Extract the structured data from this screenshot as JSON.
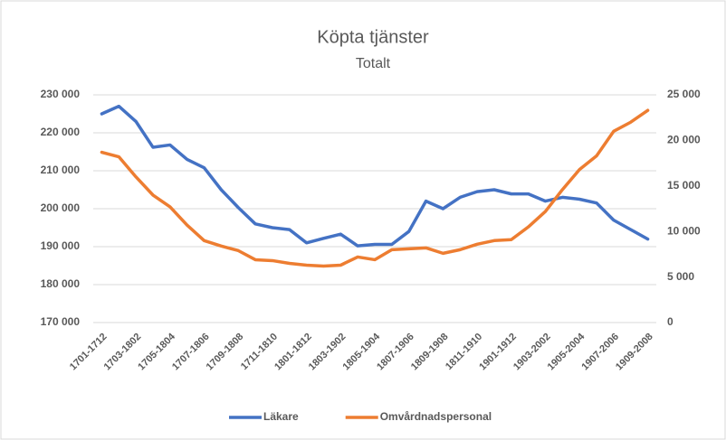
{
  "chart_data": {
    "type": "line",
    "title": "Köpta tjänster",
    "subtitle": "Totalt",
    "categories": [
      "1701-1712",
      null,
      "1703-1802",
      null,
      "1705-1804",
      null,
      "1707-1806",
      null,
      "1709-1808",
      null,
      "1711-1810",
      null,
      "1801-1812",
      null,
      "1803-1902",
      null,
      "1805-1904",
      null,
      "1807-1906",
      null,
      "1809-1908",
      null,
      "1811-1910",
      null,
      "1901-1912",
      null,
      "1903-2002",
      null,
      "1905-2004",
      null,
      "1907-2006",
      null,
      "1909-2008"
    ],
    "series": [
      {
        "name": "Läkare",
        "color": "#4472c4",
        "axis": "y",
        "values": [
          225000,
          227000,
          223000,
          216200,
          216800,
          213000,
          210800,
          205000,
          200300,
          196000,
          195000,
          194500,
          191000,
          192200,
          193300,
          190200,
          190600,
          190600,
          194000,
          202000,
          200000,
          203000,
          204500,
          205000,
          203900,
          203900,
          202000,
          203000,
          202500,
          201500,
          197000,
          194500,
          192000
        ]
      },
      {
        "name": "Omvårdnadspersonal",
        "color": "#ed7d31",
        "axis": "y2",
        "values": [
          18700,
          18200,
          16000,
          14000,
          12700,
          10700,
          9000,
          8400,
          7900,
          6900,
          6800,
          6500,
          6300,
          6200,
          6300,
          7200,
          6900,
          8000,
          8100,
          8200,
          7600,
          8000,
          8600,
          9000,
          9100,
          10500,
          12200,
          14600,
          16800,
          18300,
          21000,
          22000,
          23300
        ]
      }
    ],
    "ylim": [
      170000,
      230000
    ],
    "yticks": [
      {
        "value": 170000,
        "label": "170 000"
      },
      {
        "value": 180000,
        "label": "180 000"
      },
      {
        "value": 190000,
        "label": "190 000"
      },
      {
        "value": 200000,
        "label": "200 000"
      },
      {
        "value": 210000,
        "label": "210 000"
      },
      {
        "value": 220000,
        "label": "220 000"
      },
      {
        "value": 230000,
        "label": "230 000"
      }
    ],
    "y2lim": [
      0,
      25000
    ],
    "y2ticks": [
      0,
      {
        "value": 5000,
        "label": "5 000"
      },
      {
        "value": 10000,
        "label": "10 000"
      },
      {
        "value": 15000,
        "label": "15 000"
      },
      {
        "value": 20000,
        "label": "20 000"
      },
      {
        "value": 25000,
        "label": "25 000"
      }
    ],
    "grid": true,
    "legend": "bottom"
  }
}
